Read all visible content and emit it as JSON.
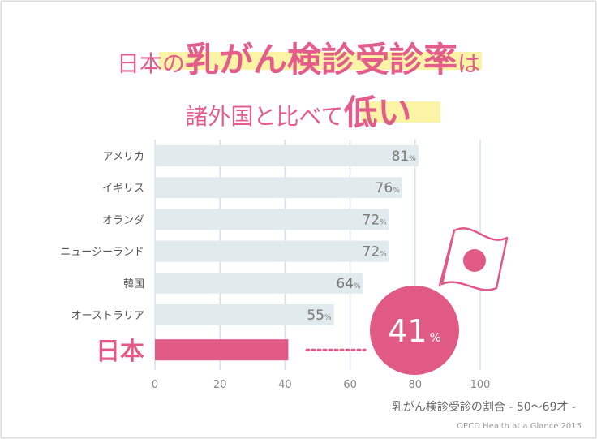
{
  "title": {
    "line1_pre": "日本の",
    "line1_hl": "乳がん検診受診率",
    "line1_post": "は",
    "line2_pre": "諸外国と比べて",
    "line2_hl": "低い"
  },
  "percent_unit": "%",
  "callout": {
    "value": "41",
    "unit": "%"
  },
  "footer": {
    "caption": "乳がん検診受診の割合 - 50〜69才 -",
    "source": "OECD Health at a Glance 2015"
  },
  "colors": {
    "accent": "#e15a86",
    "bar": "#e1ebed",
    "grid": "#d6e2e5",
    "label": "#555555",
    "value": "#7a7a7a",
    "flag_border": "#e15a86",
    "circle": "#e15a86"
  },
  "chart_data": {
    "type": "bar",
    "orientation": "horizontal",
    "categories": [
      "アメリカ",
      "イギリス",
      "オランダ",
      "ニュージーランド",
      "韓国",
      "オーストラリア",
      "日本"
    ],
    "values": [
      81,
      76,
      72,
      72,
      64,
      55,
      41
    ],
    "highlight": "日本",
    "xlim": [
      0,
      100
    ],
    "xticks": [
      0,
      20,
      40,
      60,
      80,
      100
    ],
    "grid": true,
    "xlabel": "乳がん検診受診の割合 - 50〜69才 -"
  }
}
